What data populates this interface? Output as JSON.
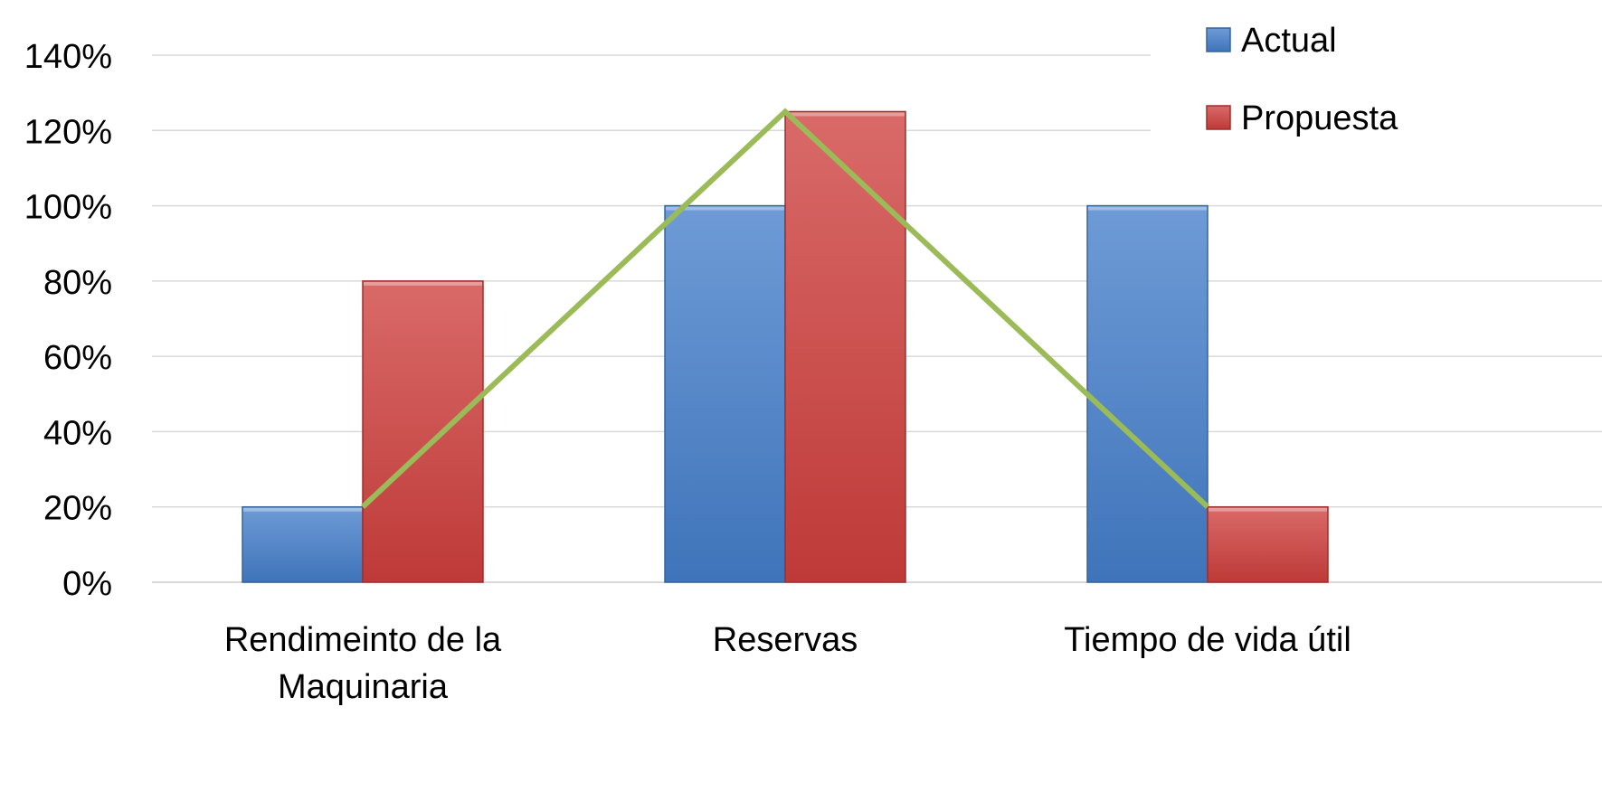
{
  "chart_data": {
    "type": "bar",
    "title": "",
    "xlabel": "",
    "ylabel": "",
    "ylim": [
      0,
      1.4
    ],
    "y_ticks": [
      0,
      0.2,
      0.4,
      0.6,
      0.8,
      1.0,
      1.2,
      1.4
    ],
    "y_tick_labels": [
      "0%",
      "20%",
      "40%",
      "60%",
      "80%",
      "100%",
      "120%",
      "140%"
    ],
    "categories": [
      [
        "Rendimeinto de la",
        "Maquinaria"
      ],
      [
        "Reservas"
      ],
      [
        "Tiempo de vida útil"
      ]
    ],
    "series": [
      {
        "name": "Actual",
        "values": [
          0.2,
          1.0,
          1.0
        ],
        "color": "#4F81BD"
      },
      {
        "name": "Propuesta",
        "values": [
          0.8,
          1.25,
          0.2
        ],
        "color": "#C0504D"
      }
    ],
    "overlay_line": {
      "points": [
        {
          "category": 0,
          "value": 0.2
        },
        {
          "category": 1,
          "value": 1.25
        },
        {
          "category": 2,
          "value": 0.2
        }
      ],
      "color": "#9BBB59"
    },
    "grid": true,
    "legend_position": "top-right"
  }
}
